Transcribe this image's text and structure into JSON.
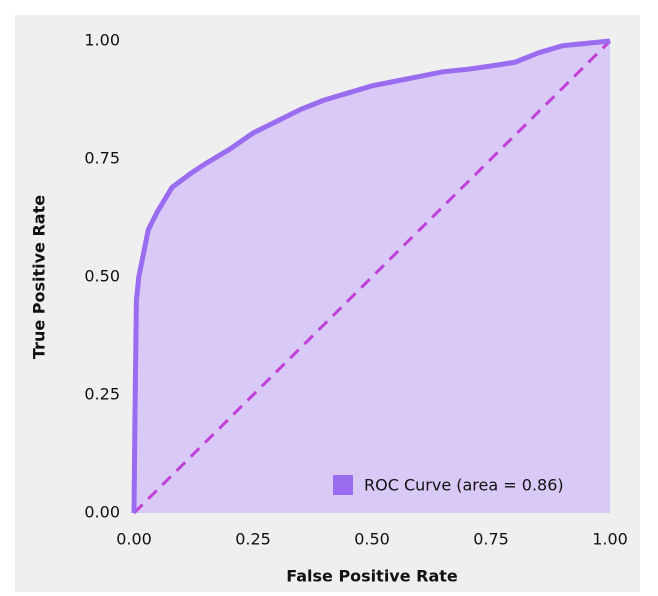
{
  "chart_data": {
    "type": "line",
    "xlabel": "False Positive Rate",
    "ylabel": "True Positive Rate",
    "x": [
      0,
      0.002,
      0.005,
      0.01,
      0.02,
      0.03,
      0.05,
      0.08,
      0.12,
      0.15,
      0.2,
      0.25,
      0.3,
      0.35,
      0.4,
      0.45,
      0.5,
      0.55,
      0.6,
      0.65,
      0.7,
      0.75,
      0.8,
      0.85,
      0.9,
      0.95,
      1
    ],
    "series": [
      {
        "name": "ROC Curve (area = 0.86)",
        "color": "#9a6cf0",
        "fill": "#d9c9f6",
        "values": [
          0,
          0.2,
          0.45,
          0.5,
          0.55,
          0.6,
          0.64,
          0.69,
          0.72,
          0.74,
          0.77,
          0.805,
          0.83,
          0.855,
          0.875,
          0.89,
          0.905,
          0.915,
          0.925,
          0.935,
          0.94,
          0.947,
          0.955,
          0.975,
          0.99,
          0.995,
          1
        ]
      }
    ],
    "diagonal_color": "#c040d8",
    "xlim": [
      0,
      1
    ],
    "ylim": [
      0,
      1
    ],
    "xticks": [
      {
        "value": 0,
        "label": "0.00"
      },
      {
        "value": 0.25,
        "label": "0.25"
      },
      {
        "value": 0.5,
        "label": "0.50"
      },
      {
        "value": 0.75,
        "label": "0.75"
      },
      {
        "value": 1,
        "label": "1.00"
      }
    ],
    "yticks": [
      {
        "value": 0,
        "label": "0.00"
      },
      {
        "value": 0.25,
        "label": "0.25"
      },
      {
        "value": 0.5,
        "label": "0.50"
      },
      {
        "value": 0.75,
        "label": "0.75"
      },
      {
        "value": 1,
        "label": "1.00"
      }
    ],
    "legend": "lower right"
  }
}
